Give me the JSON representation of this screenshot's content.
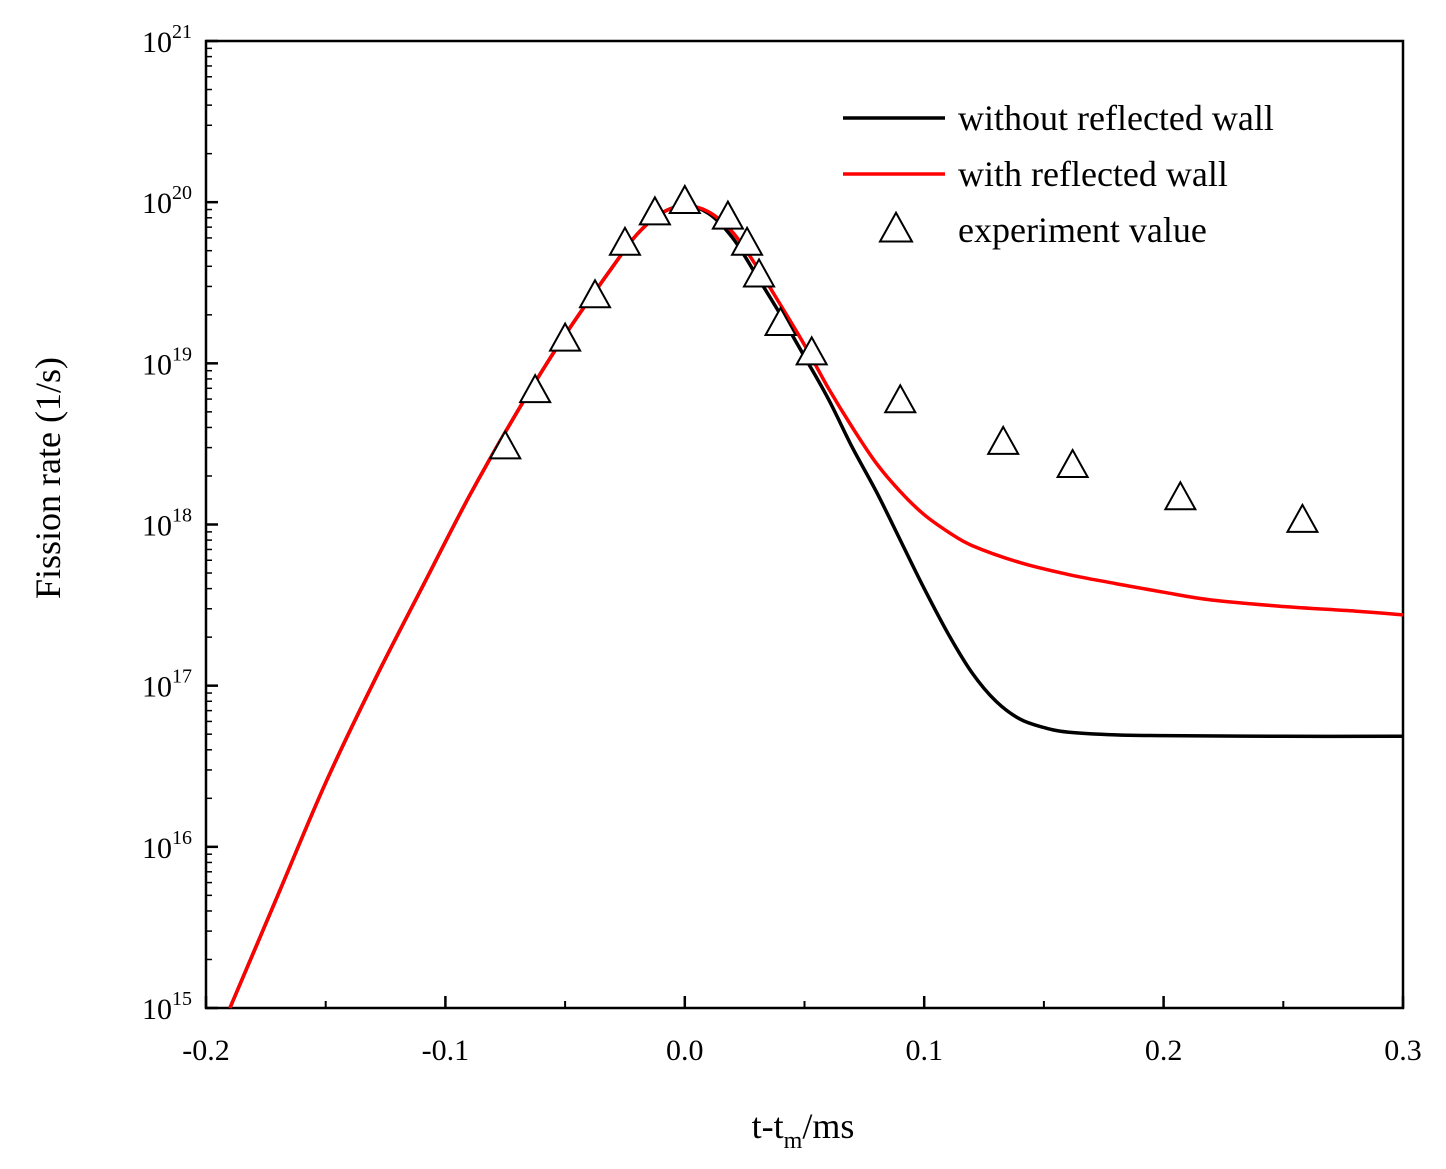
{
  "chart_data": {
    "type": "line",
    "title": "",
    "xlabel": "t-t",
    "xlabel_sub": "m",
    "xlabel_suffix": "/ms",
    "ylabel": "Fission rate (1/s)",
    "xlim": [
      -0.2,
      0.3
    ],
    "ylim": [
      1000000000000000.0,
      1e+21
    ],
    "yscale": "log",
    "grid": false,
    "legend_position": "top-right",
    "x_ticks": [
      {
        "value": -0.2,
        "label": "-0.2"
      },
      {
        "value": -0.1,
        "label": "-0.1"
      },
      {
        "value": 0.0,
        "label": "0.0"
      },
      {
        "value": 0.1,
        "label": "0.1"
      },
      {
        "value": 0.2,
        "label": "0.2"
      },
      {
        "value": 0.3,
        "label": "0.3"
      }
    ],
    "y_ticks": [
      {
        "value": 1000000000000000.0,
        "base": "10",
        "exp": "15"
      },
      {
        "value": 1e+16,
        "base": "10",
        "exp": "16"
      },
      {
        "value": 1e+17,
        "base": "10",
        "exp": "17"
      },
      {
        "value": 1e+18,
        "base": "10",
        "exp": "18"
      },
      {
        "value": 1e+19,
        "base": "10",
        "exp": "19"
      },
      {
        "value": 1e+20,
        "base": "10",
        "exp": "20"
      },
      {
        "value": 1e+21,
        "base": "10",
        "exp": "21"
      }
    ],
    "series": [
      {
        "name": "without reflected wall",
        "kind": "line",
        "color": "#000000",
        "points": [
          [
            -0.19,
            1000000000000000.0
          ],
          [
            -0.17,
            5000000000000000.0
          ],
          [
            -0.15,
            2.5e+16
          ],
          [
            -0.13,
            1.05e+17
          ],
          [
            -0.11,
            4e+17
          ],
          [
            -0.09,
            1.5e+18
          ],
          [
            -0.07,
            5e+18
          ],
          [
            -0.05,
            1.5e+19
          ],
          [
            -0.03,
            4e+19
          ],
          [
            -0.02,
            6.3e+19
          ],
          [
            -0.01,
            8.5e+19
          ],
          [
            0.0,
            9.5e+19
          ],
          [
            0.01,
            8.5e+19
          ],
          [
            0.02,
            6e+19
          ],
          [
            0.03,
            3.5e+19
          ],
          [
            0.04,
            2e+19
          ],
          [
            0.05,
            1.1e+19
          ],
          [
            0.06,
            6e+18
          ],
          [
            0.07,
            3e+18
          ],
          [
            0.08,
            1.6e+18
          ],
          [
            0.09,
            8e+17
          ],
          [
            0.1,
            4e+17
          ],
          [
            0.11,
            2.1e+17
          ],
          [
            0.12,
            1.2e+17
          ],
          [
            0.13,
            8e+16
          ],
          [
            0.14,
            6.2e+16
          ],
          [
            0.15,
            5.5e+16
          ],
          [
            0.16,
            5.15e+16
          ],
          [
            0.18,
            4.95e+16
          ],
          [
            0.2,
            4.9e+16
          ],
          [
            0.25,
            4.85e+16
          ],
          [
            0.3,
            4.85e+16
          ]
        ]
      },
      {
        "name": "with reflected wall",
        "kind": "line",
        "color": "#ff0000",
        "points": [
          [
            -0.19,
            1000000000000000.0
          ],
          [
            -0.17,
            5000000000000000.0
          ],
          [
            -0.15,
            2.5e+16
          ],
          [
            -0.13,
            1.05e+17
          ],
          [
            -0.11,
            4e+17
          ],
          [
            -0.09,
            1.5e+18
          ],
          [
            -0.07,
            5e+18
          ],
          [
            -0.05,
            1.5e+19
          ],
          [
            -0.03,
            4e+19
          ],
          [
            -0.02,
            6.3e+19
          ],
          [
            -0.01,
            8.5e+19
          ],
          [
            0.0,
            9.5e+19
          ],
          [
            0.01,
            8.7e+19
          ],
          [
            0.02,
            6.5e+19
          ],
          [
            0.03,
            4e+19
          ],
          [
            0.04,
            2.3e+19
          ],
          [
            0.05,
            1.3e+19
          ],
          [
            0.06,
            7e+18
          ],
          [
            0.07,
            4e+18
          ],
          [
            0.08,
            2.4e+18
          ],
          [
            0.09,
            1.6e+18
          ],
          [
            0.1,
            1.15e+18
          ],
          [
            0.11,
            9e+17
          ],
          [
            0.12,
            7.4e+17
          ],
          [
            0.14,
            5.8e+17
          ],
          [
            0.16,
            4.9e+17
          ],
          [
            0.18,
            4.3e+17
          ],
          [
            0.2,
            3.8e+17
          ],
          [
            0.22,
            3.4e+17
          ],
          [
            0.25,
            3.1e+17
          ],
          [
            0.28,
            2.9e+17
          ],
          [
            0.3,
            2.75e+17
          ]
        ]
      },
      {
        "name": "experiment value",
        "kind": "scatter",
        "marker": "open-triangle",
        "color": "#000000",
        "points": [
          [
            -0.075,
            3e+18
          ],
          [
            -0.0625,
            6.7e+18
          ],
          [
            -0.05,
            1.4e+19
          ],
          [
            -0.0375,
            2.6e+19
          ],
          [
            -0.025,
            5.5e+19
          ],
          [
            -0.0125,
            8.5e+19
          ],
          [
            0.0,
            1e+20
          ],
          [
            0.018,
            8e+19
          ],
          [
            0.026,
            5.5e+19
          ],
          [
            0.031,
            3.5e+19
          ],
          [
            0.04,
            1.75e+19
          ],
          [
            0.053,
            1.15e+19
          ],
          [
            0.09,
            5.8e+18
          ],
          [
            0.133,
            3.2e+18
          ],
          [
            0.162,
            2.3e+18
          ],
          [
            0.207,
            1.45e+18
          ],
          [
            0.258,
            1.05e+18
          ]
        ]
      }
    ]
  }
}
